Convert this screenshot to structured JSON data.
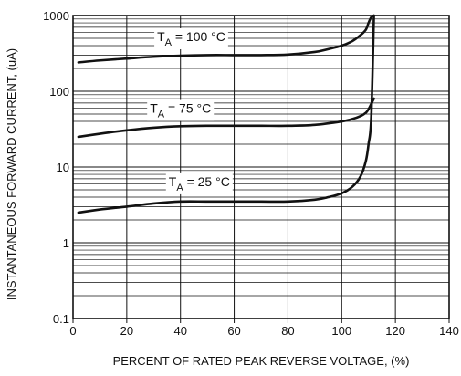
{
  "chart_data": {
    "type": "line",
    "title": "",
    "xlabel": "PERCENT OF RATED PEAK REVERSE VOLTAGE, (%)",
    "ylabel": "INSTANTANEOUS FORWARD CURRENT, (uA)",
    "xlim": [
      0,
      140
    ],
    "ylim": [
      0.1,
      1000
    ],
    "yscale": "log",
    "grid": true,
    "x_ticks": [
      "0",
      "20",
      "40",
      "60",
      "80",
      "100",
      "120",
      "140"
    ],
    "y_ticks": [
      "0.1",
      "1",
      "10",
      "100",
      "1000"
    ],
    "series": [
      {
        "name": "TA = 100 °C",
        "label_main": "T",
        "label_sub": "A",
        "label_rest": " = 100 °C",
        "x": [
          2,
          10,
          20,
          30,
          40,
          50,
          60,
          70,
          80,
          90,
          95,
          100,
          104,
          107,
          109,
          110,
          111,
          112
        ],
        "y": [
          240,
          255,
          270,
          285,
          295,
          300,
          300,
          300,
          305,
          330,
          360,
          400,
          460,
          550,
          650,
          800,
          950,
          1000
        ]
      },
      {
        "name": "TA = 75 °C",
        "label_main": "T",
        "label_sub": "A",
        "label_rest": " = 75 °C",
        "x": [
          2,
          10,
          20,
          30,
          40,
          50,
          60,
          70,
          80,
          90,
          100,
          104,
          107,
          109,
          110,
          111,
          112
        ],
        "y": [
          25,
          27.5,
          30.5,
          33,
          34.5,
          35,
          35,
          35,
          35,
          36,
          40,
          43,
          47,
          52,
          58,
          68,
          80
        ]
      },
      {
        "name": "TA = 25 °C",
        "label_main": "T",
        "label_sub": "A",
        "label_rest": " = 25 °C",
        "x": [
          2,
          10,
          20,
          30,
          40,
          50,
          60,
          70,
          80,
          90,
          95,
          100,
          104,
          107,
          109,
          110,
          111,
          112
        ],
        "y": [
          2.5,
          2.75,
          3.0,
          3.3,
          3.5,
          3.5,
          3.5,
          3.5,
          3.5,
          3.7,
          4.0,
          4.5,
          5.5,
          7.5,
          12,
          20,
          45,
          1000
        ]
      }
    ]
  }
}
